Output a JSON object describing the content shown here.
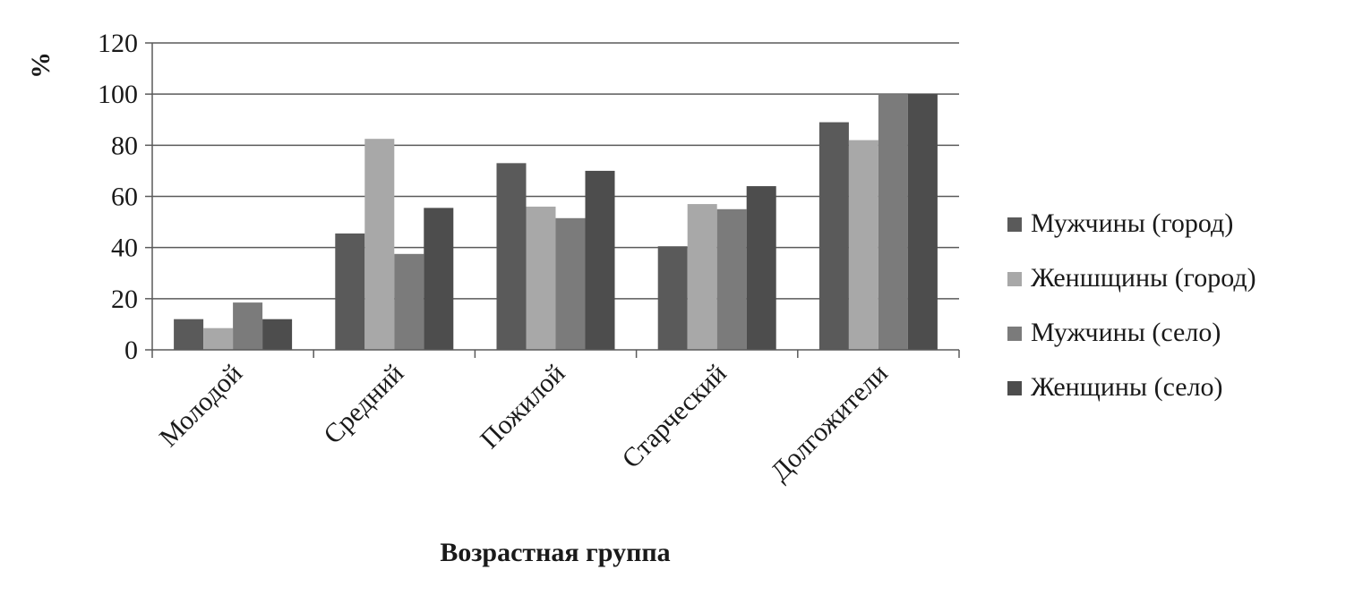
{
  "chart_data": {
    "type": "bar",
    "title": "",
    "xlabel": "Возрастная группа",
    "ylabel": "%",
    "ylim": [
      0,
      120
    ],
    "yticks": [
      0,
      20,
      40,
      60,
      80,
      100,
      120
    ],
    "grid": true,
    "legend_position": "right",
    "categories": [
      "Молодой",
      "Средний",
      "Пожилой",
      "Старческий",
      "Долгожители"
    ],
    "series": [
      {
        "name": "Мужчины (город)",
        "color": "#5a5a5a",
        "values": [
          12,
          45.5,
          73,
          40.5,
          89
        ]
      },
      {
        "name": "Женшщины (город)",
        "color": "#a8a8a8",
        "values": [
          8.5,
          82.5,
          56,
          57,
          82
        ]
      },
      {
        "name": "Мужчины (село)",
        "color": "#7b7b7b",
        "values": [
          18.5,
          37.5,
          51.5,
          55,
          100
        ]
      },
      {
        "name": "Женщины (село)",
        "color": "#4d4d4d",
        "values": [
          12,
          55.5,
          70,
          64,
          100
        ]
      }
    ]
  }
}
